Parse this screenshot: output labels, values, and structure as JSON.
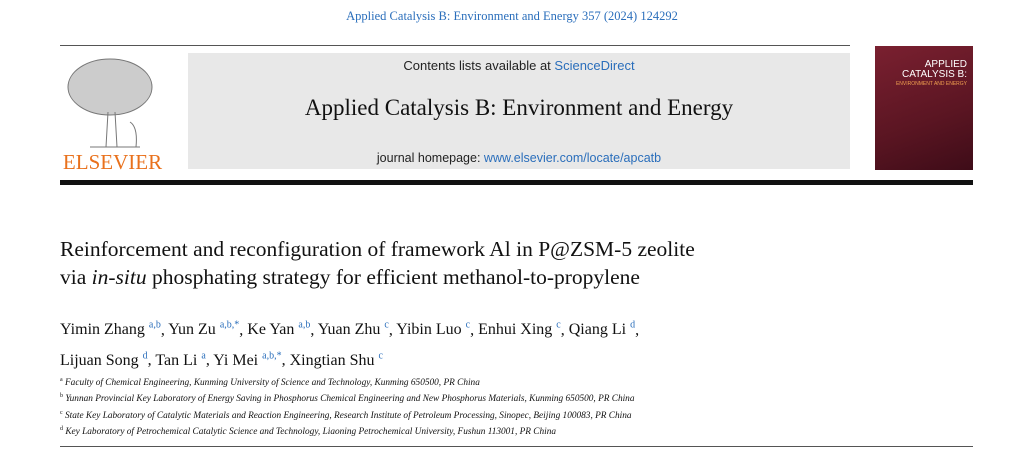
{
  "citation": "Applied Catalysis B: Environment and Energy 357 (2024) 124292",
  "header": {
    "contents_prefix": "Contents lists available at ",
    "contents_link": "ScienceDirect",
    "journal": "Applied Catalysis B: Environment and Energy",
    "homepage_prefix": "journal homepage: ",
    "homepage_link": "www.elsevier.com/locate/apcatb",
    "publisher": "ELSEVIER",
    "cover_title": "APPLIED CATALYSIS B:",
    "cover_subtitle": "ENVIRONMENT AND ENERGY"
  },
  "article": {
    "title_line1": "Reinforcement and reconfiguration of framework Al in P@ZSM-5 zeolite",
    "title_line2_pre": "via ",
    "title_line2_italic": "in-situ",
    "title_line2_post": " phosphating strategy for efficient methanol-to-propylene",
    "authors": [
      {
        "name": "Yimin Zhang",
        "aff": "a,b"
      },
      {
        "name": "Yun Zu",
        "aff": "a,b,*"
      },
      {
        "name": "Ke Yan",
        "aff": "a,b"
      },
      {
        "name": "Yuan Zhu",
        "aff": "c"
      },
      {
        "name": "Yibin Luo",
        "aff": "c"
      },
      {
        "name": "Enhui Xing",
        "aff": "c"
      },
      {
        "name": "Qiang Li",
        "aff": "d"
      },
      {
        "name": "Lijuan Song",
        "aff": "d"
      },
      {
        "name": "Tan Li",
        "aff": "a"
      },
      {
        "name": "Yi Mei",
        "aff": "a,b,*"
      },
      {
        "name": "Xingtian Shu",
        "aff": "c"
      }
    ],
    "affiliations": [
      {
        "key": "a",
        "text": "Faculty of Chemical Engineering, Kunming University of Science and Technology, Kunming 650500, PR China"
      },
      {
        "key": "b",
        "text": "Yunnan Provincial Key Laboratory of Energy Saving in Phosphorus Chemical Engineering and New Phosphorus Materials, Kunming 650500, PR China"
      },
      {
        "key": "c",
        "text": "State Key Laboratory of Catalytic Materials and Reaction Engineering, Research Institute of Petroleum Processing, Sinopec, Beijing 100083, PR China"
      },
      {
        "key": "d",
        "text": "Key Laboratory of Petrochemical Catalytic Science and Technology, Liaoning Petrochemical University, Fushun 113001, PR China"
      }
    ]
  }
}
